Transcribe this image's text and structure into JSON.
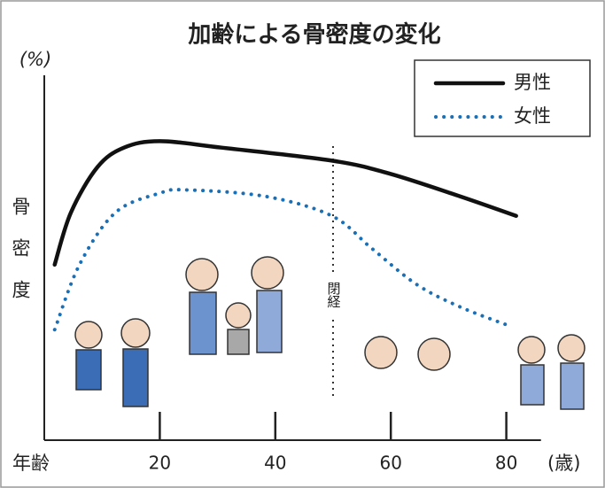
{
  "chart_data": {
    "type": "line",
    "title": "加齢による骨密度の変化",
    "y_label": "(%)",
    "y_axis_title": "骨密度",
    "x_label": "年齢",
    "x_unit": "(歳)",
    "series": [
      {
        "name": "男性",
        "color": "#111111",
        "style": "solid",
        "x": [
          1.8,
          4.6,
          9.2,
          13.8,
          20,
          30.7,
          49.8,
          59.8,
          72,
          81.7
        ],
        "values": [
          54,
          70,
          84,
          90,
          92,
          90,
          86,
          82,
          75,
          69
        ]
      },
      {
        "name": "女性",
        "color": "#1a6fb5",
        "style": "dotted",
        "x": [
          1.8,
          6.1,
          12.3,
          20,
          24.5,
          38.3,
          49.8,
          56.7,
          64.4,
          72,
          80.8
        ],
        "values": [
          34,
          54,
          70,
          76,
          77,
          75,
          69,
          59,
          48,
          41,
          35
        ]
      }
    ],
    "annotation": {
      "label": "閉経",
      "x": 50
    },
    "xlim": [
      0,
      86
    ],
    "xticks": [
      20,
      40,
      60,
      80
    ],
    "ylim": [
      0,
      100
    ],
    "legend": "top-right"
  }
}
